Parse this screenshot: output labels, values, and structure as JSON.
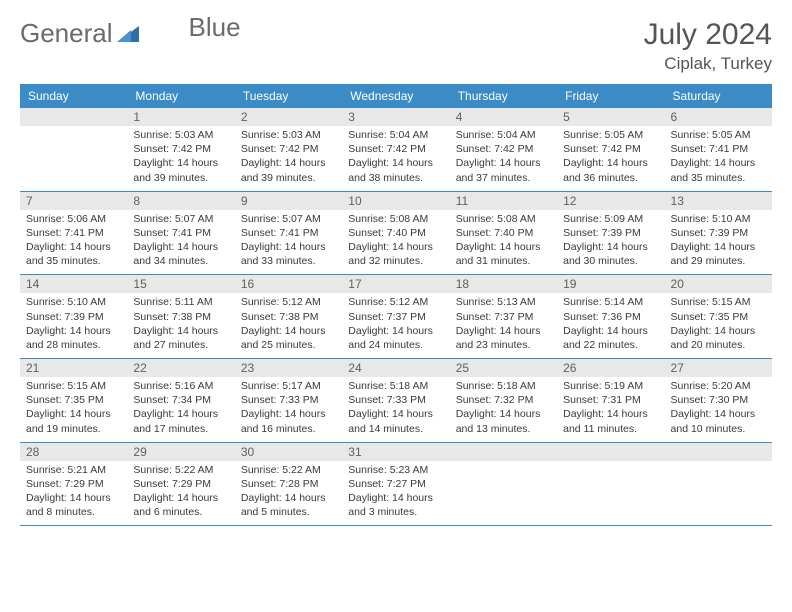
{
  "logo": {
    "text1": "General",
    "text2": "Blue"
  },
  "title": "July 2024",
  "location": "Ciplak, Turkey",
  "colors": {
    "header_bg": "#3b8bc6",
    "header_text": "#ffffff",
    "date_bg": "#e8e8e8",
    "date_text": "#606060",
    "body_text": "#3a3a3a",
    "logo_text": "#6b6b6b",
    "logo_accent": "#2f6fa8"
  },
  "day_headers": [
    "Sunday",
    "Monday",
    "Tuesday",
    "Wednesday",
    "Thursday",
    "Friday",
    "Saturday"
  ],
  "weeks": [
    [
      {
        "empty": true
      },
      {
        "date": "1",
        "sunrise": "5:03 AM",
        "sunset": "7:42 PM",
        "daylight": "14 hours and 39 minutes."
      },
      {
        "date": "2",
        "sunrise": "5:03 AM",
        "sunset": "7:42 PM",
        "daylight": "14 hours and 39 minutes."
      },
      {
        "date": "3",
        "sunrise": "5:04 AM",
        "sunset": "7:42 PM",
        "daylight": "14 hours and 38 minutes."
      },
      {
        "date": "4",
        "sunrise": "5:04 AM",
        "sunset": "7:42 PM",
        "daylight": "14 hours and 37 minutes."
      },
      {
        "date": "5",
        "sunrise": "5:05 AM",
        "sunset": "7:42 PM",
        "daylight": "14 hours and 36 minutes."
      },
      {
        "date": "6",
        "sunrise": "5:05 AM",
        "sunset": "7:41 PM",
        "daylight": "14 hours and 35 minutes."
      }
    ],
    [
      {
        "date": "7",
        "sunrise": "5:06 AM",
        "sunset": "7:41 PM",
        "daylight": "14 hours and 35 minutes."
      },
      {
        "date": "8",
        "sunrise": "5:07 AM",
        "sunset": "7:41 PM",
        "daylight": "14 hours and 34 minutes."
      },
      {
        "date": "9",
        "sunrise": "5:07 AM",
        "sunset": "7:41 PM",
        "daylight": "14 hours and 33 minutes."
      },
      {
        "date": "10",
        "sunrise": "5:08 AM",
        "sunset": "7:40 PM",
        "daylight": "14 hours and 32 minutes."
      },
      {
        "date": "11",
        "sunrise": "5:08 AM",
        "sunset": "7:40 PM",
        "daylight": "14 hours and 31 minutes."
      },
      {
        "date": "12",
        "sunrise": "5:09 AM",
        "sunset": "7:39 PM",
        "daylight": "14 hours and 30 minutes."
      },
      {
        "date": "13",
        "sunrise": "5:10 AM",
        "sunset": "7:39 PM",
        "daylight": "14 hours and 29 minutes."
      }
    ],
    [
      {
        "date": "14",
        "sunrise": "5:10 AM",
        "sunset": "7:39 PM",
        "daylight": "14 hours and 28 minutes."
      },
      {
        "date": "15",
        "sunrise": "5:11 AM",
        "sunset": "7:38 PM",
        "daylight": "14 hours and 27 minutes."
      },
      {
        "date": "16",
        "sunrise": "5:12 AM",
        "sunset": "7:38 PM",
        "daylight": "14 hours and 25 minutes."
      },
      {
        "date": "17",
        "sunrise": "5:12 AM",
        "sunset": "7:37 PM",
        "daylight": "14 hours and 24 minutes."
      },
      {
        "date": "18",
        "sunrise": "5:13 AM",
        "sunset": "7:37 PM",
        "daylight": "14 hours and 23 minutes."
      },
      {
        "date": "19",
        "sunrise": "5:14 AM",
        "sunset": "7:36 PM",
        "daylight": "14 hours and 22 minutes."
      },
      {
        "date": "20",
        "sunrise": "5:15 AM",
        "sunset": "7:35 PM",
        "daylight": "14 hours and 20 minutes."
      }
    ],
    [
      {
        "date": "21",
        "sunrise": "5:15 AM",
        "sunset": "7:35 PM",
        "daylight": "14 hours and 19 minutes."
      },
      {
        "date": "22",
        "sunrise": "5:16 AM",
        "sunset": "7:34 PM",
        "daylight": "14 hours and 17 minutes."
      },
      {
        "date": "23",
        "sunrise": "5:17 AM",
        "sunset": "7:33 PM",
        "daylight": "14 hours and 16 minutes."
      },
      {
        "date": "24",
        "sunrise": "5:18 AM",
        "sunset": "7:33 PM",
        "daylight": "14 hours and 14 minutes."
      },
      {
        "date": "25",
        "sunrise": "5:18 AM",
        "sunset": "7:32 PM",
        "daylight": "14 hours and 13 minutes."
      },
      {
        "date": "26",
        "sunrise": "5:19 AM",
        "sunset": "7:31 PM",
        "daylight": "14 hours and 11 minutes."
      },
      {
        "date": "27",
        "sunrise": "5:20 AM",
        "sunset": "7:30 PM",
        "daylight": "14 hours and 10 minutes."
      }
    ],
    [
      {
        "date": "28",
        "sunrise": "5:21 AM",
        "sunset": "7:29 PM",
        "daylight": "14 hours and 8 minutes."
      },
      {
        "date": "29",
        "sunrise": "5:22 AM",
        "sunset": "7:29 PM",
        "daylight": "14 hours and 6 minutes."
      },
      {
        "date": "30",
        "sunrise": "5:22 AM",
        "sunset": "7:28 PM",
        "daylight": "14 hours and 5 minutes."
      },
      {
        "date": "31",
        "sunrise": "5:23 AM",
        "sunset": "7:27 PM",
        "daylight": "14 hours and 3 minutes."
      },
      {
        "empty": true
      },
      {
        "empty": true
      },
      {
        "empty": true
      }
    ]
  ],
  "labels": {
    "sunrise": "Sunrise:",
    "sunset": "Sunset:",
    "daylight": "Daylight:"
  }
}
